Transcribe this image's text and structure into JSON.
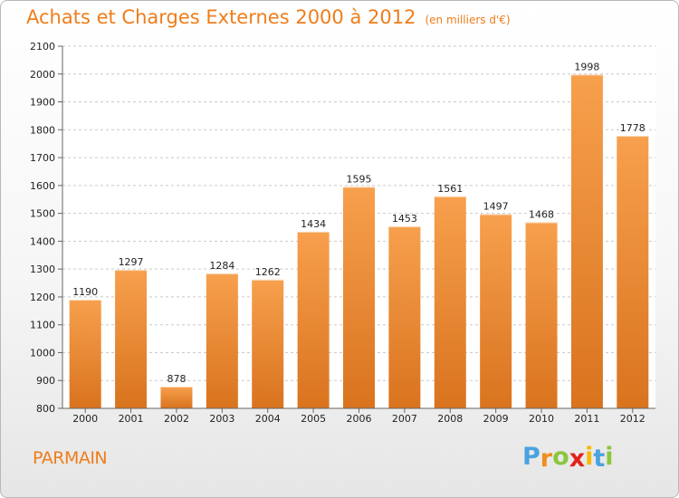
{
  "header": {
    "title": "Achats et Charges Externes 2000 à 2012",
    "subtitle": "(en milliers d'€)"
  },
  "footer": {
    "place": "PARMAIN",
    "logo_letters": [
      "P",
      "r",
      "o",
      "x",
      "i",
      "t",
      "i"
    ],
    "logo_colors": [
      "#4aa3df",
      "#f28c1b",
      "#8cc63f",
      "#e2231a",
      "#f6b800",
      "#4aa3df",
      "#8cc63f"
    ]
  },
  "chart_data": {
    "type": "bar",
    "title": "Achats et Charges Externes 2000 à 2012",
    "subtitle": "(en milliers d'€)",
    "categories": [
      "2000",
      "2001",
      "2002",
      "2003",
      "2004",
      "2005",
      "2006",
      "2007",
      "2008",
      "2009",
      "2010",
      "2011",
      "2012"
    ],
    "values": [
      1190,
      1297,
      878,
      1284,
      1262,
      1434,
      1595,
      1453,
      1561,
      1497,
      1468,
      1998,
      1778
    ],
    "data_labels": [
      "1190",
      "1297",
      "878",
      "1284",
      "1262",
      "1434",
      "1595",
      "1453",
      "1561",
      "1497",
      "1468",
      "1998",
      "1778"
    ],
    "ylim": [
      800,
      2100
    ],
    "yticks": [
      "800",
      "900",
      "1000",
      "1100",
      "1200",
      "1300",
      "1400",
      "1500",
      "1600",
      "1700",
      "1800",
      "1900",
      "2000",
      "2100"
    ],
    "xlabel": "",
    "ylabel": "",
    "grid": true,
    "legend": "none",
    "bar_color_top": "#f7a04d",
    "bar_color_bottom": "#d9731e"
  }
}
